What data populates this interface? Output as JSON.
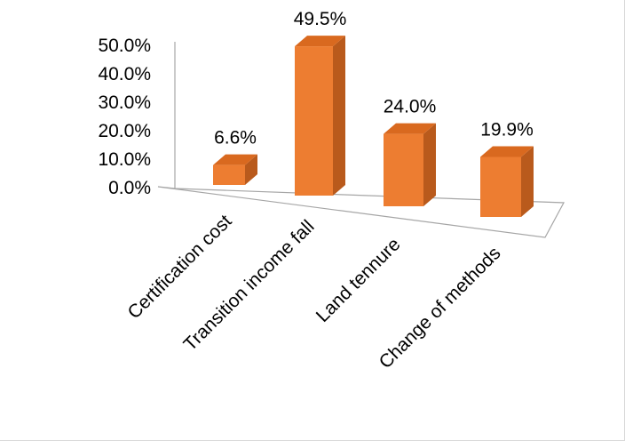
{
  "chart_data": {
    "type": "bar",
    "categories": [
      "Certification cost",
      "Transition income fall",
      "Land tennure",
      "Change of methods"
    ],
    "values": [
      6.6,
      49.5,
      24.0,
      19.9
    ],
    "data_labels": [
      "6.6%",
      "49.5%",
      "24.0%",
      "19.9%"
    ],
    "y_ticks": [
      "0.0%",
      "10.0%",
      "20.0%",
      "30.0%",
      "40.0%",
      "50.0%"
    ],
    "ylim": [
      0,
      50
    ],
    "title": "",
    "xlabel": "",
    "ylabel": "",
    "grid": false,
    "legend": "none",
    "style": "3d-column",
    "colors": {
      "front": "#ED7D31",
      "side": "#B95A1C",
      "top": "#D9691F",
      "floor": "#9a9a9a"
    }
  }
}
